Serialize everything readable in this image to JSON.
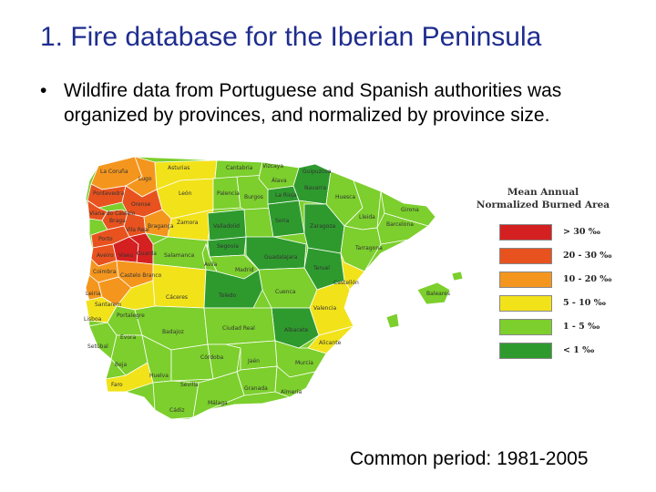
{
  "slide": {
    "title": "1. Fire database for the Iberian Peninsula",
    "bullet": "Wildfire data from Portuguese and Spanish authorities was organized by provinces, and normalized by province size.",
    "footer": "Common period: 1981-2005"
  },
  "map": {
    "legend": {
      "title_line1": "Mean Annual",
      "title_line2": "Normalized Burned Area",
      "classes": [
        {
          "label": "> 30 ‰",
          "color": "#d42020"
        },
        {
          "label": "20 - 30 ‰",
          "color": "#e8521e"
        },
        {
          "label": "10 - 20 ‰",
          "color": "#f4961e"
        },
        {
          "label": "5 - 10 ‰",
          "color": "#f2e21a"
        },
        {
          "label": "1 - 5 ‰",
          "color": "#7ccf2c"
        },
        {
          "label": "< 1 ‰",
          "color": "#2e9a2e"
        }
      ]
    },
    "provinces": [
      "La Coruña",
      "Asturias",
      "Cantabria",
      "Vizcaya",
      "Guipuzcoa",
      "Álava",
      "Navarra",
      "Lugo",
      "León",
      "Burgos",
      "La Rioja",
      "Pontevedra",
      "Orense",
      "Palencia",
      "Huesca",
      "Girona",
      "Viana do Castelo",
      "Braga",
      "Zamora",
      "Valladolid",
      "Soria",
      "Zaragoza",
      "Lleida",
      "Barcelona",
      "Vila Real",
      "Porto",
      "Bragança",
      "Segovia",
      "Tarragona",
      "Aveiro",
      "Viseu",
      "Guarda",
      "Salamanca",
      "Avila",
      "Guadalajara",
      "Teruel",
      "Coimbra",
      "Castelo Branco",
      "Madrid",
      "Leiria",
      "Cáceres",
      "Toledo",
      "Cuenca",
      "Castellón",
      "Santarem",
      "Portalegre",
      "Valencia",
      "Lisboa",
      "Badajoz",
      "Ciudad Real",
      "Albacete",
      "Evora",
      "Alicante",
      "Setúbal",
      "Beja",
      "Córdoba",
      "Jaén",
      "Murcia",
      "Huelva",
      "Sevilla",
      "Granada",
      "Almería",
      "Faro",
      "Málaga",
      "Cádiz",
      "Baleares"
    ]
  }
}
